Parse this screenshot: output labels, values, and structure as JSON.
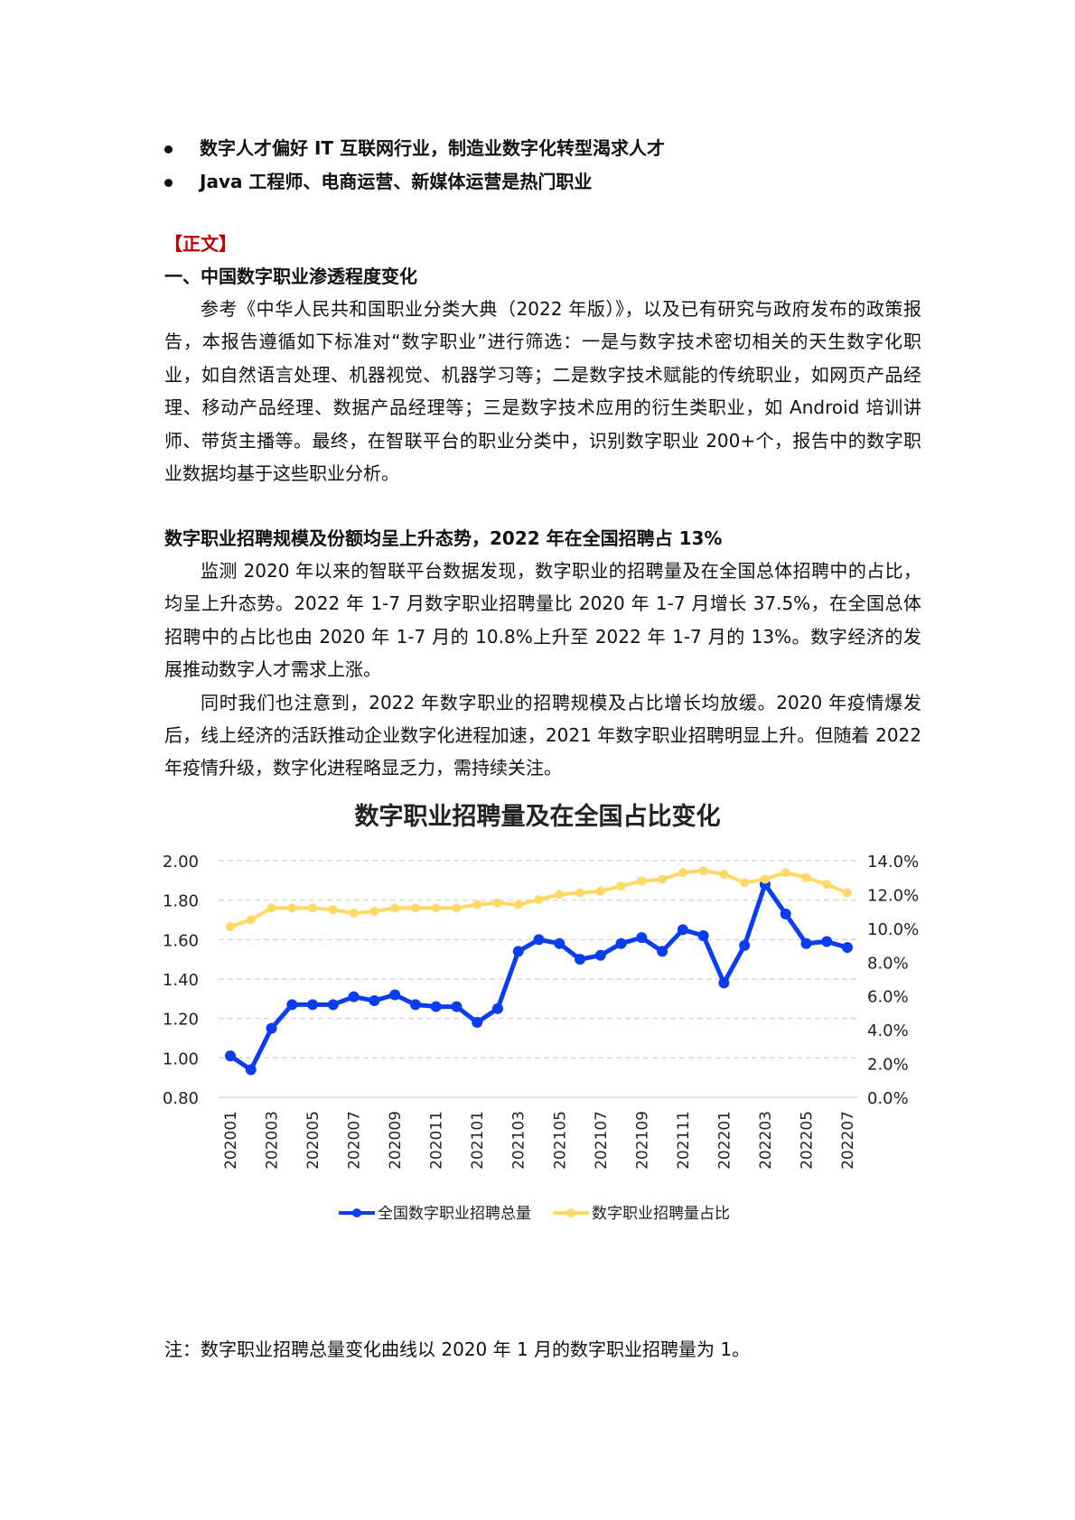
{
  "bullets": [
    "数字人才偏好 IT 互联网行业，制造业数字化转型渴求人才",
    "Java 工程师、电商运营、新媒体运营是热门职业"
  ],
  "section_tag": "【正文】",
  "section_tag_color": "#c00000",
  "heading1": "一、中国数字职业渗透程度变化",
  "para1": "参考《中华人民共和国职业分类大典（2022 年版）》，以及已有研究与政府发布的政策报告，本报告遵循如下标准对“数字职业”进行筛选：一是与数字技术密切相关的天生数字化职业，如自然语言处理、机器视觉、机器学习等；二是数字技术赋能的传统职业，如网页产品经理、移动产品经理、数据产品经理等；三是数字技术应用的衍生类职业，如 Android 培训讲师、带货主播等。最终，在智联平台的职业分类中，识别数字职业 200+个，报告中的数字职业数据均基于这些职业分析。",
  "heading2": "数字职业招聘规模及份额均呈上升态势，2022 年在全国招聘占 13%",
  "para2": "监测 2020 年以来的智联平台数据发现，数字职业的招聘量及在全国总体招聘中的占比，均呈上升态势。2022 年 1-7 月数字职业招聘量比 2020 年 1-7 月增长 37.5%，在全国总体招聘中的占比也由 2020 年 1-7 月的 10.8%上升至 2022 年 1-7 月的 13%。数字经济的发展推动数字人才需求上涨。",
  "para3": "同时我们也注意到，2022 年数字职业的招聘规模及占比增长均放缓。2020 年疫情爆发后，线上经济的活跃推动企业数字化进程加速，2021 年数字职业招聘明显上升。但随着 2022 年疫情升级，数字化进程略显乏力，需持续关注。",
  "note": "注：数字职业招聘总量变化曲线以 2020 年 1 月的数字职业招聘量为 1。",
  "chart_data": {
    "type": "line",
    "title": "数字职业招聘量及在全国占比变化",
    "x": [
      "202001",
      "202002",
      "202003",
      "202004",
      "202005",
      "202006",
      "202007",
      "202008",
      "202009",
      "202010",
      "202011",
      "202012",
      "202101",
      "202102",
      "202103",
      "202104",
      "202105",
      "202106",
      "202107",
      "202108",
      "202109",
      "202110",
      "202111",
      "202112",
      "202201",
      "202202",
      "202203",
      "202204",
      "202205",
      "202206",
      "202207"
    ],
    "x_tick_labels": [
      "202001",
      "202003",
      "202005",
      "202007",
      "202009",
      "202011",
      "202101",
      "202103",
      "202105",
      "202107",
      "202109",
      "202111",
      "202201",
      "202203",
      "202205",
      "202207"
    ],
    "y_left": {
      "range": [
        0.8,
        2.0
      ],
      "ticks": [
        "0.80",
        "1.00",
        "1.20",
        "1.40",
        "1.60",
        "1.80",
        "2.00"
      ]
    },
    "y_right": {
      "range": [
        0,
        14
      ],
      "ticks": [
        "0.0%",
        "2.0%",
        "4.0%",
        "6.0%",
        "8.0%",
        "10.0%",
        "12.0%",
        "14.0%"
      ]
    },
    "grid": true,
    "legend_position": "bottom",
    "series": [
      {
        "name": "全国数字职业招聘总量",
        "axis": "left",
        "color": "#0a3cf0",
        "values": [
          1.01,
          0.94,
          1.15,
          1.27,
          1.27,
          1.27,
          1.31,
          1.29,
          1.32,
          1.27,
          1.26,
          1.26,
          1.18,
          1.25,
          1.54,
          1.6,
          1.58,
          1.5,
          1.52,
          1.58,
          1.61,
          1.54,
          1.65,
          1.62,
          1.38,
          1.57,
          1.88,
          1.73,
          1.58,
          1.59,
          1.56
        ]
      },
      {
        "name": "数字职业招聘量占比",
        "axis": "right",
        "unit": "%",
        "color": "#ffd966",
        "values": [
          10.1,
          10.5,
          11.2,
          11.2,
          11.2,
          11.1,
          10.9,
          11.0,
          11.2,
          11.2,
          11.2,
          11.2,
          11.4,
          11.5,
          11.4,
          11.7,
          12.0,
          12.1,
          12.2,
          12.5,
          12.8,
          12.9,
          13.3,
          13.4,
          13.2,
          12.7,
          12.9,
          13.3,
          13.0,
          12.6,
          12.1
        ]
      }
    ]
  }
}
